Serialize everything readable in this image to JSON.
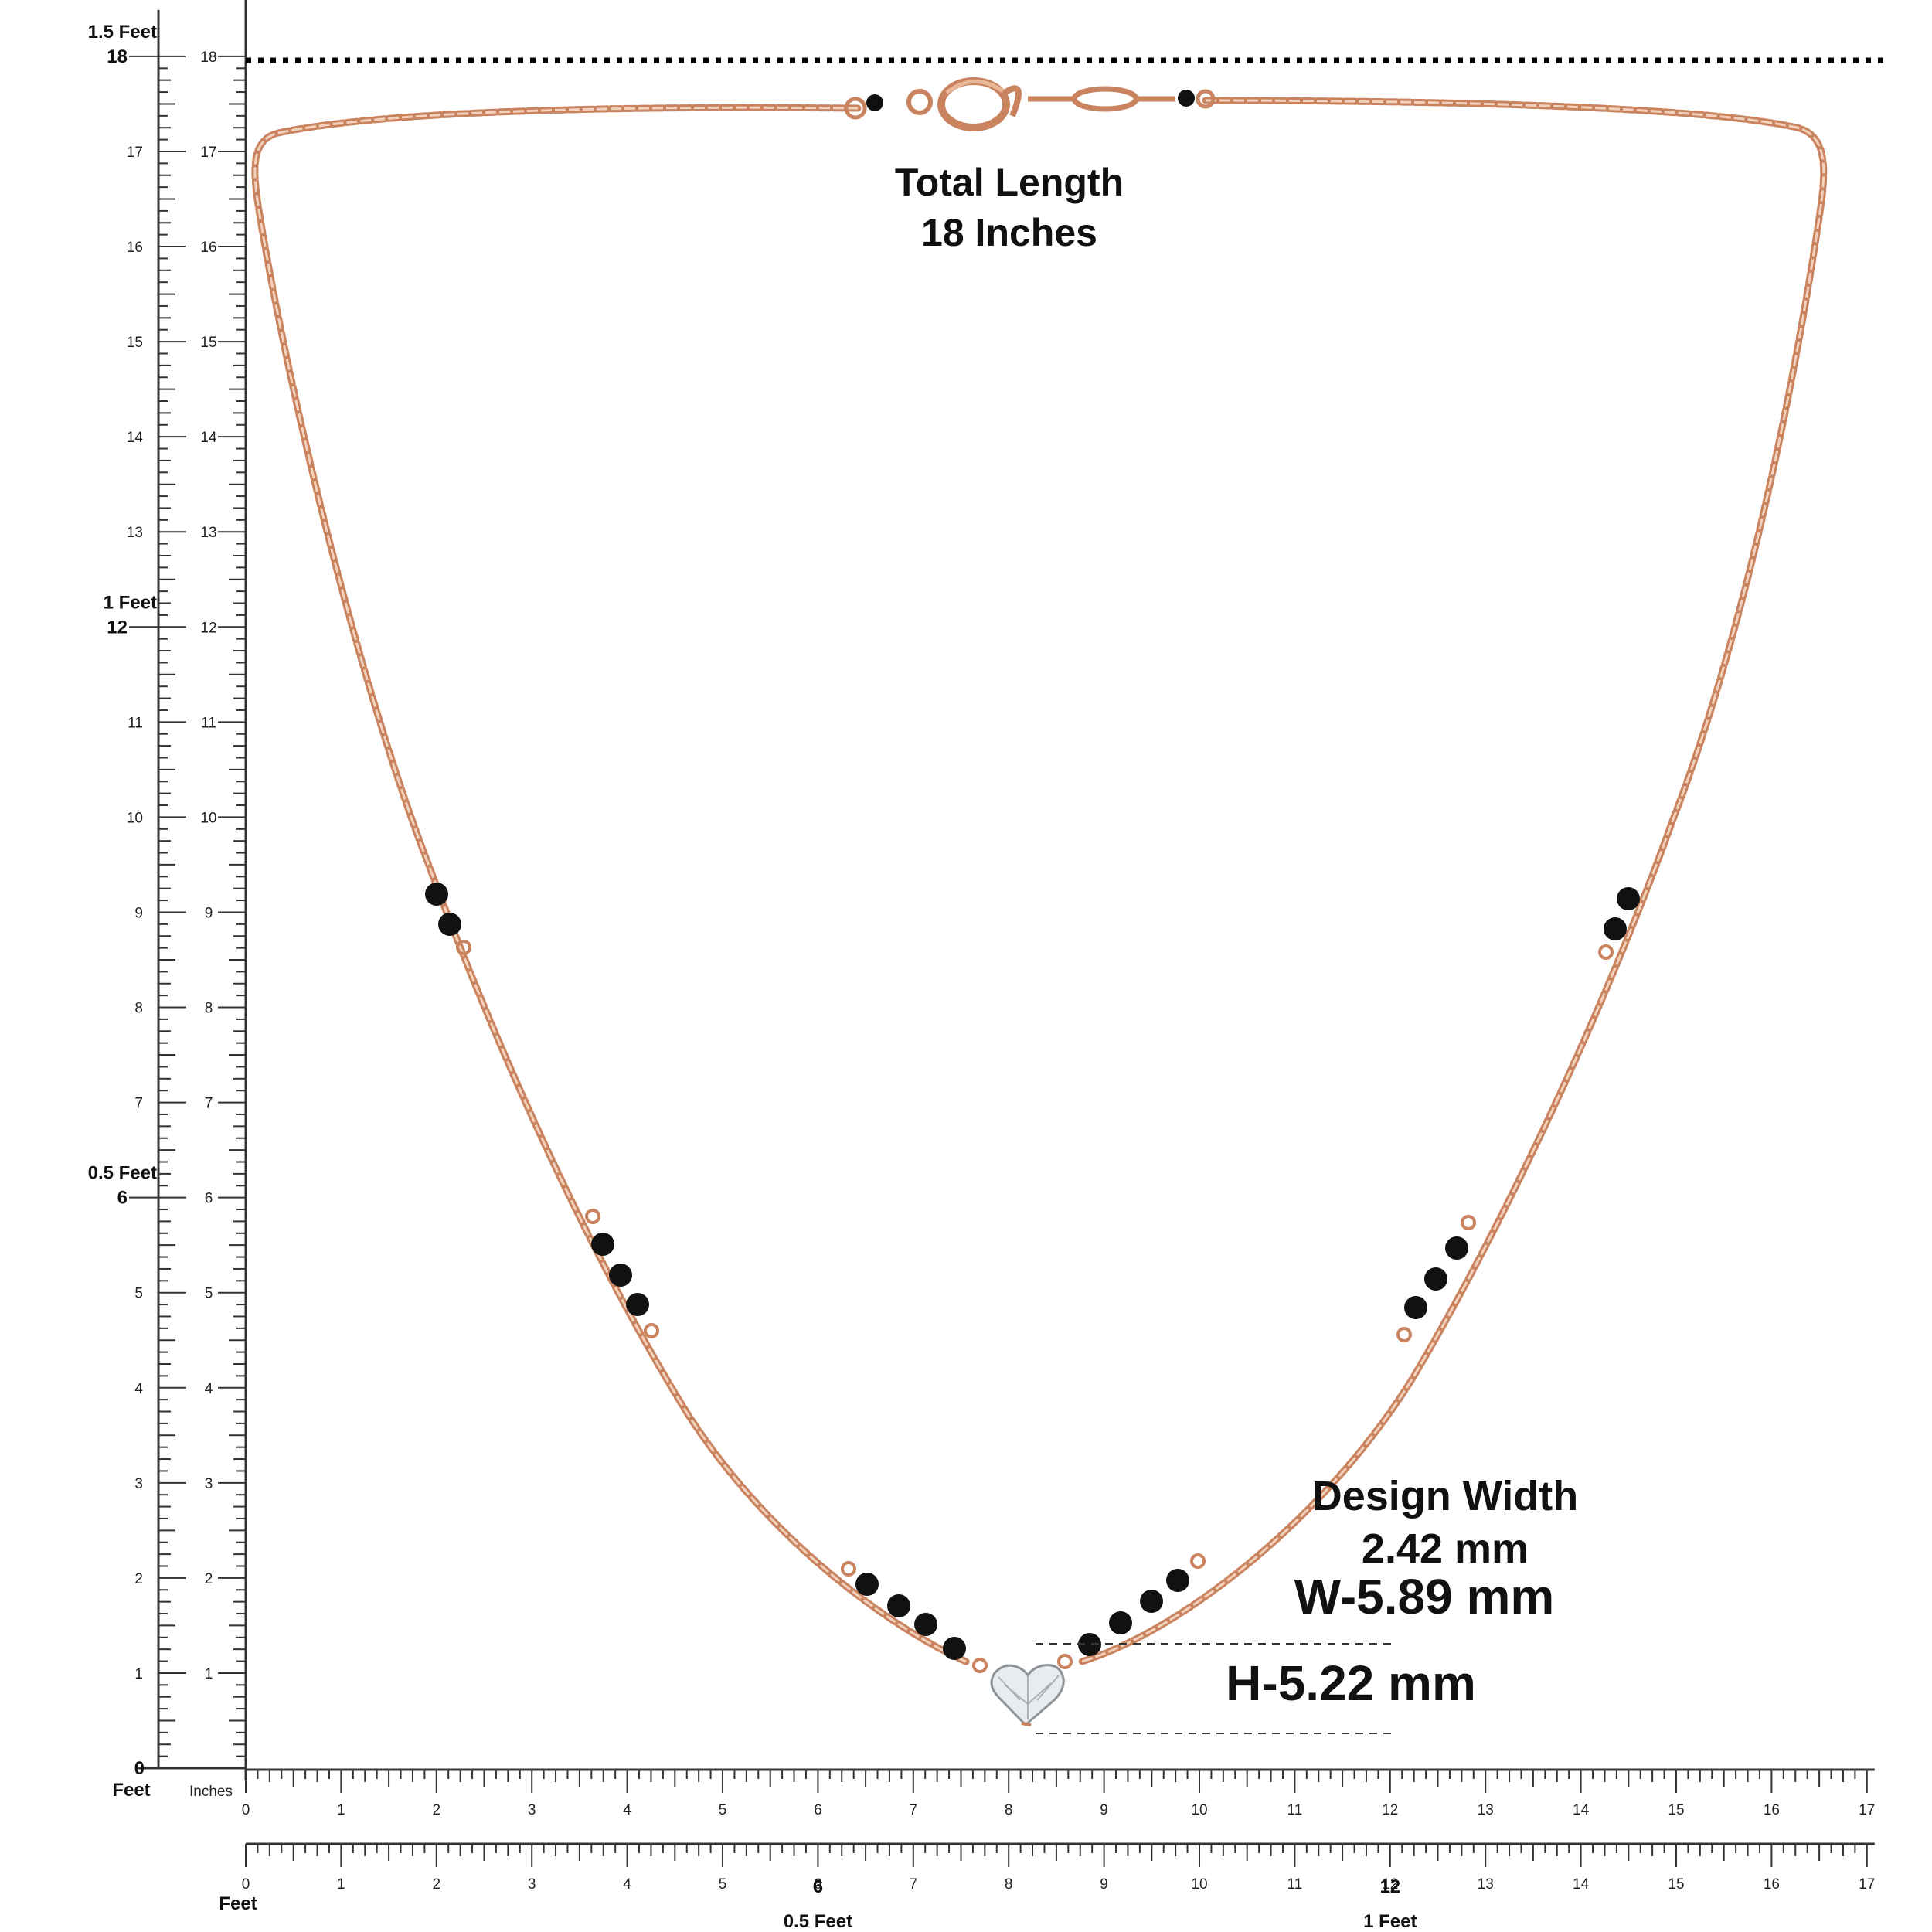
{
  "annotations": {
    "total_length_line1": "Total Length",
    "total_length_line2": "18 Inches",
    "design_width_line1": "Design Width",
    "design_width_line2": "2.42 mm",
    "pendant_width": "W-5.89 mm",
    "pendant_height": "H-5.22 mm"
  },
  "vertical_ruler": {
    "inches_min": 0,
    "inches_max": 18,
    "feet_markers": [
      {
        "inch": 18,
        "label": "1.5 Feet"
      },
      {
        "inch": 12,
        "label": "1 Feet"
      },
      {
        "inch": 6,
        "label": "0.5 Feet"
      }
    ],
    "outer_zero_label": "0",
    "feet_unit_label": "Feet",
    "inches_unit_label": "Inches"
  },
  "horizontal_ruler_top": {
    "inches_min": 0,
    "inches_max": 17
  },
  "horizontal_ruler_bottom": {
    "inches_min": 0,
    "inches_max": 17,
    "feet_unit_label": "Feet",
    "feet_markers": [
      {
        "inch": 6,
        "label": "0.5 Feet"
      },
      {
        "inch": 12,
        "label": "1 Feet"
      }
    ]
  },
  "colors": {
    "chain": "#d9a07f",
    "bead": "#111111",
    "ruler": "#333333",
    "text": "#111111"
  },
  "product": {
    "pendant": "heart-diamond",
    "bead_groups": 7
  }
}
